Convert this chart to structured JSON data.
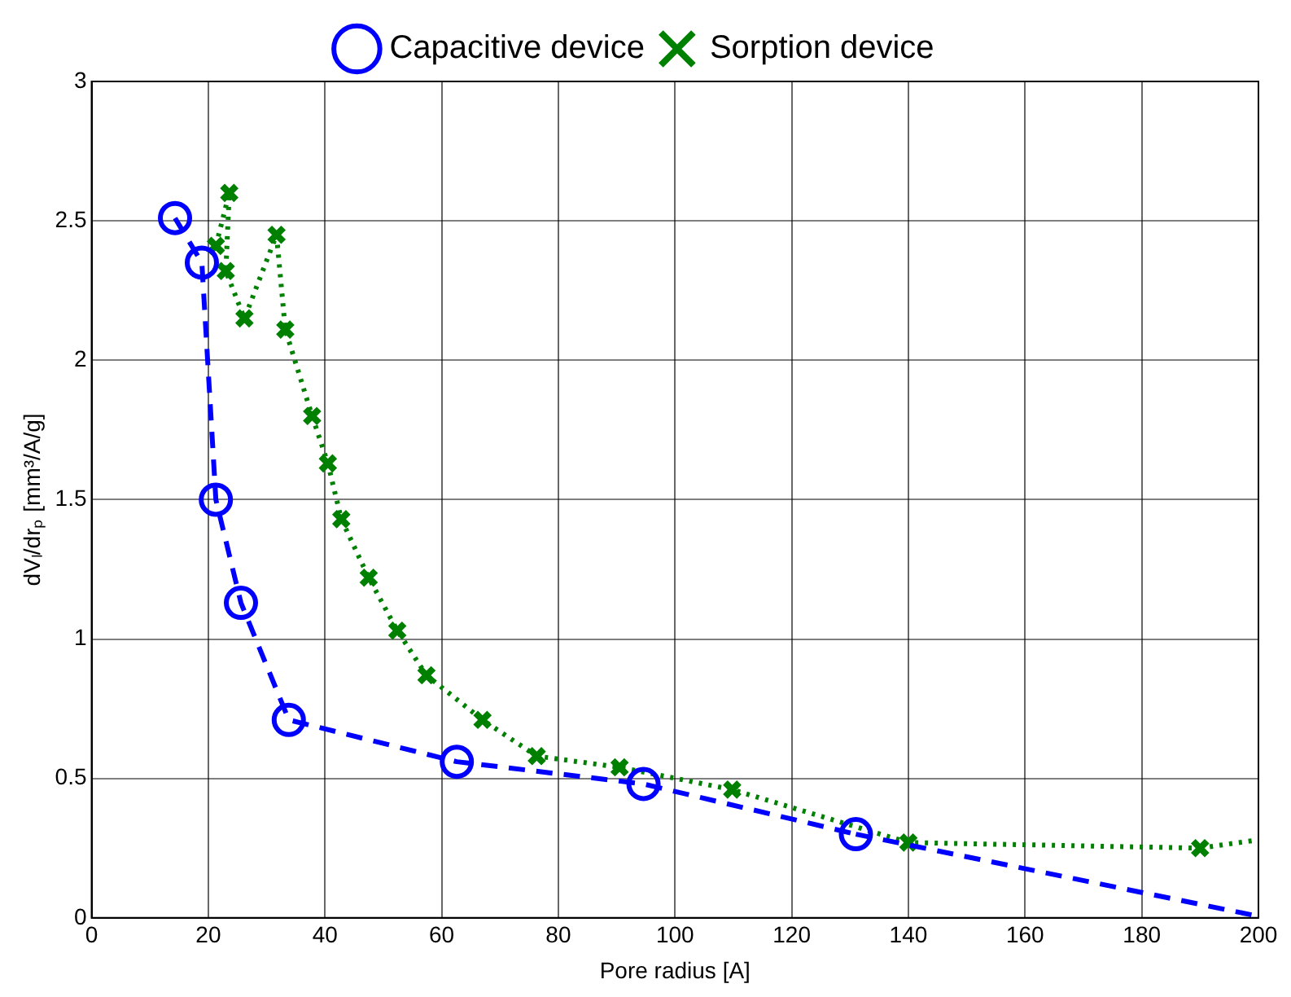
{
  "chart_data": {
    "type": "line",
    "xlabel": "Pore radius [A]",
    "ylabel": "dVₗ/drₚ [mm³/A/g]",
    "xlim": [
      0,
      200
    ],
    "xticks": [
      0,
      20,
      40,
      60,
      80,
      100,
      120,
      140,
      160,
      180,
      200
    ],
    "ylim": [
      0,
      3
    ],
    "yticks": [
      0,
      0.5,
      1,
      1.5,
      2,
      2.5,
      3
    ],
    "grid": true,
    "legend": "top",
    "series": [
      {
        "name": "Capacitive device",
        "color": "#0000ff",
        "marker": "circle",
        "line_style": "dashed",
        "x": [
          14.3,
          18.9,
          21.3,
          25.6,
          33.8,
          62.6,
          94.6,
          131
        ],
        "values": [
          2.51,
          2.35,
          1.5,
          1.13,
          0.71,
          0.56,
          0.48,
          0.3
        ]
      },
      {
        "color": "#0000ff",
        "marker": "none",
        "line_style": "dashed",
        "x": [
          131,
          199
        ],
        "values": [
          0.3,
          0.01
        ]
      },
      {
        "name": "Sorption device",
        "color": "#008000",
        "marker": "cross",
        "line_style": "dotted",
        "x": [
          21.3,
          23.6,
          23,
          26.2,
          31.7,
          33.2,
          37.8,
          40.5,
          42.8,
          47.5,
          52.4,
          57.4,
          67,
          76.3,
          90.5,
          109.8,
          140,
          190
        ],
        "values": [
          2.41,
          2.6,
          2.32,
          2.15,
          2.45,
          2.11,
          1.8,
          1.63,
          1.43,
          1.22,
          1.03,
          0.87,
          0.71,
          0.58,
          0.54,
          0.46,
          0.27,
          0.25
        ]
      },
      {
        "color": "#008000",
        "marker": "none",
        "line_style": "dotted",
        "x": [
          190,
          200
        ],
        "values": [
          0.25,
          0.28
        ]
      }
    ]
  }
}
